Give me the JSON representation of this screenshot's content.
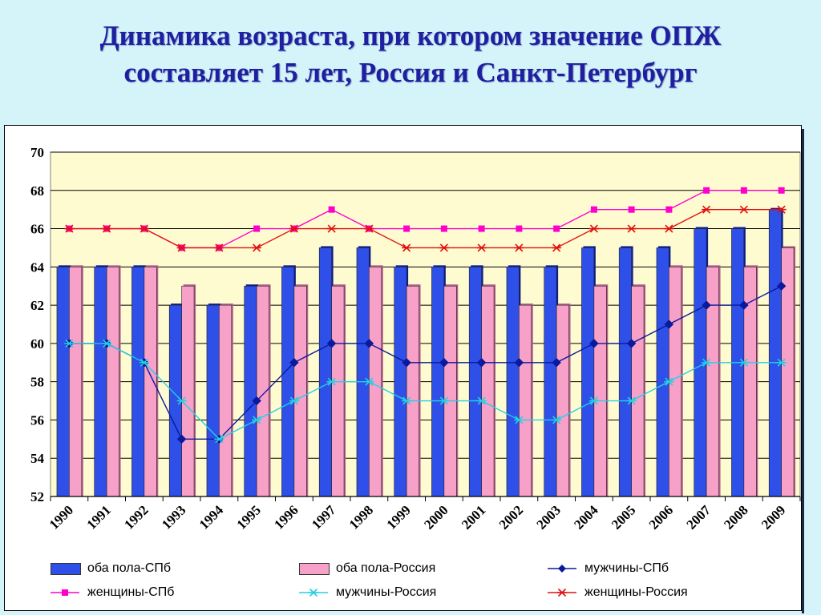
{
  "slide": {
    "title_line1": "Динамика возраста, при котором значение ОПЖ",
    "title_line2": "составляет 15 лет, Россия и Санкт-Петербург"
  },
  "chart_data": {
    "type": "bar",
    "title": "",
    "xlabel": "",
    "ylabel": "",
    "ylim": [
      52,
      70
    ],
    "yticks": [
      52,
      54,
      56,
      58,
      60,
      62,
      64,
      66,
      68,
      70
    ],
    "grid": true,
    "legend_position": "bottom",
    "categories": [
      "1990",
      "1991",
      "1992",
      "1993",
      "1994",
      "1995",
      "1996",
      "1997",
      "1998",
      "1999",
      "2000",
      "2001",
      "2002",
      "2003",
      "2004",
      "2005",
      "2006",
      "2007",
      "2008",
      "2009"
    ],
    "bar_series": [
      {
        "name": "оба пола-СПб",
        "color": "#2e4fe8",
        "values": [
          64,
          64,
          64,
          62,
          62,
          63,
          64,
          65,
          65,
          64,
          64,
          64,
          64,
          64,
          65,
          65,
          65,
          66,
          66,
          67
        ]
      },
      {
        "name": "оба пола-Россия",
        "color": "#f7a0c8",
        "values": [
          64,
          64,
          64,
          63,
          62,
          63,
          63,
          63,
          64,
          63,
          63,
          63,
          62,
          62,
          63,
          63,
          64,
          64,
          64,
          65
        ]
      }
    ],
    "line_series": [
      {
        "name": "мужчины-СПб",
        "color": "#0a1a9a",
        "marker": "diamond",
        "values": [
          60,
          60,
          59,
          55,
          55,
          57,
          59,
          60,
          60,
          59,
          59,
          59,
          59,
          59,
          60,
          60,
          61,
          62,
          62,
          63
        ]
      },
      {
        "name": "женщины-СПб",
        "color": "#ff00cc",
        "marker": "square",
        "values": [
          66,
          66,
          66,
          65,
          65,
          66,
          66,
          67,
          66,
          66,
          66,
          66,
          66,
          66,
          67,
          67,
          67,
          68,
          68,
          68
        ]
      },
      {
        "name": "мужчины-Россия",
        "color": "#22d0e6",
        "marker": "asterisk",
        "values": [
          60,
          60,
          59,
          57,
          55,
          56,
          57,
          58,
          58,
          57,
          57,
          57,
          56,
          56,
          57,
          57,
          58,
          59,
          59,
          59
        ]
      },
      {
        "name": "женщины-Россия",
        "color": "#e01010",
        "marker": "asterisk",
        "values": [
          66,
          66,
          66,
          65,
          65,
          65,
          66,
          66,
          66,
          65,
          65,
          65,
          65,
          65,
          66,
          66,
          66,
          67,
          67,
          67
        ]
      }
    ]
  },
  "colors": {
    "background": "#d4f4fa",
    "plot_area": "#fffbd0",
    "title": "#1f1fa0"
  }
}
